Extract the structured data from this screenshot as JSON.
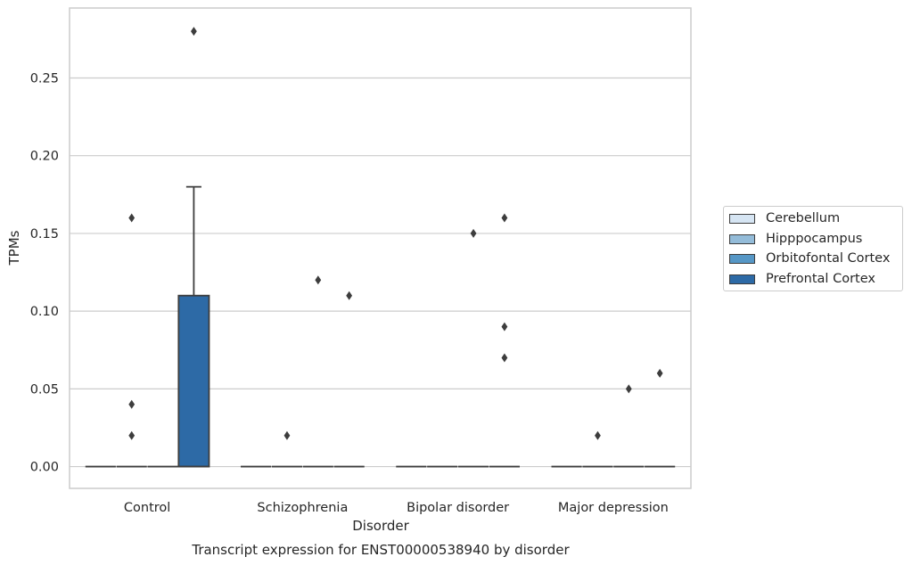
{
  "chart_data": {
    "type": "box",
    "caption": "Transcript expression for ENST00000538940 by disorder",
    "xlabel": "Disorder",
    "ylabel": "TPMs",
    "categories": [
      "Control",
      "Schizophrenia",
      "Bipolar disorder",
      "Major depression"
    ],
    "ylim": [
      -0.014,
      0.295
    ],
    "yticks": [
      "0.00",
      "0.05",
      "0.10",
      "0.15",
      "0.20",
      "0.25"
    ],
    "grid": true,
    "legend_position": "right",
    "series": [
      {
        "name": "Cerebellum",
        "color": "#d6e5f3",
        "boxes": [
          {
            "q1": 0,
            "median": 0,
            "q3": 0,
            "whisker_low": 0,
            "whisker_high": 0,
            "outliers": []
          },
          {
            "q1": 0,
            "median": 0,
            "q3": 0,
            "whisker_low": 0,
            "whisker_high": 0,
            "outliers": []
          },
          {
            "q1": 0,
            "median": 0,
            "q3": 0,
            "whisker_low": 0,
            "whisker_high": 0,
            "outliers": []
          },
          {
            "q1": 0,
            "median": 0,
            "q3": 0,
            "whisker_low": 0,
            "whisker_high": 0,
            "outliers": []
          }
        ]
      },
      {
        "name": "Hipppocampus",
        "color": "#94bcd9",
        "boxes": [
          {
            "q1": 0,
            "median": 0,
            "q3": 0,
            "whisker_low": 0,
            "whisker_high": 0,
            "outliers": [
              0.02,
              0.04,
              0.16
            ]
          },
          {
            "q1": 0,
            "median": 0,
            "q3": 0,
            "whisker_low": 0,
            "whisker_high": 0,
            "outliers": [
              0.02
            ]
          },
          {
            "q1": 0,
            "median": 0,
            "q3": 0,
            "whisker_low": 0,
            "whisker_high": 0,
            "outliers": []
          },
          {
            "q1": 0,
            "median": 0,
            "q3": 0,
            "whisker_low": 0,
            "whisker_high": 0,
            "outliers": [
              0.02
            ]
          }
        ]
      },
      {
        "name": "Orbitofontal Cortex",
        "color": "#5697c6",
        "boxes": [
          {
            "q1": 0,
            "median": 0,
            "q3": 0,
            "whisker_low": 0,
            "whisker_high": 0,
            "outliers": []
          },
          {
            "q1": 0,
            "median": 0,
            "q3": 0,
            "whisker_low": 0,
            "whisker_high": 0,
            "outliers": [
              0.12
            ]
          },
          {
            "q1": 0,
            "median": 0,
            "q3": 0,
            "whisker_low": 0,
            "whisker_high": 0,
            "outliers": [
              0.15
            ]
          },
          {
            "q1": 0,
            "median": 0,
            "q3": 0,
            "whisker_low": 0,
            "whisker_high": 0,
            "outliers": [
              0.05
            ]
          }
        ]
      },
      {
        "name": "Prefrontal Cortex",
        "color": "#2d6aa6",
        "boxes": [
          {
            "q1": 0,
            "median": 0,
            "q3": 0.11,
            "whisker_low": 0,
            "whisker_high": 0.18,
            "outliers": [
              0.28
            ]
          },
          {
            "q1": 0,
            "median": 0,
            "q3": 0,
            "whisker_low": 0,
            "whisker_high": 0,
            "outliers": [
              0.11
            ]
          },
          {
            "q1": 0,
            "median": 0,
            "q3": 0,
            "whisker_low": 0,
            "whisker_high": 0,
            "outliers": [
              0.07,
              0.09,
              0.16
            ]
          },
          {
            "q1": 0,
            "median": 0,
            "q3": 0,
            "whisker_low": 0,
            "whisker_high": 0,
            "outliers": [
              0.06
            ]
          }
        ]
      }
    ]
  }
}
